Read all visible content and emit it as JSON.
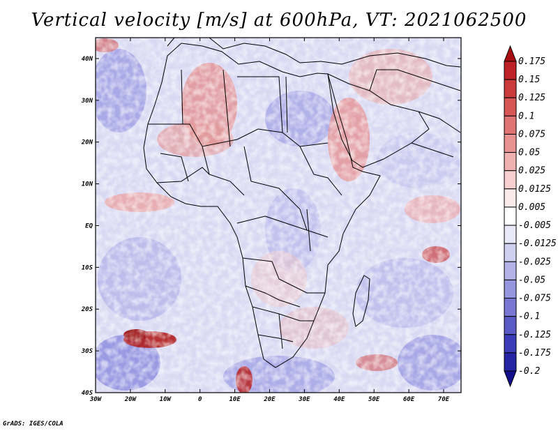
{
  "title": "Vertical velocity [m/s] at 600hPa, VT: 2021062500",
  "credit": "GrADS: IGES/COLA",
  "map": {
    "lat_labels": [
      "40N",
      "30N",
      "20N",
      "10N",
      "EQ",
      "10S",
      "20S",
      "30S",
      "40S"
    ],
    "lon_labels": [
      "30W",
      "20W",
      "10W",
      "0",
      "10E",
      "20E",
      "30E",
      "40E",
      "50E",
      "60E",
      "70E"
    ],
    "lat_range": [
      -40,
      45
    ],
    "lon_range": [
      -30,
      75
    ]
  },
  "colorbar": {
    "labels": [
      "0.175",
      "0.15",
      "0.125",
      "0.1",
      "0.075",
      "0.05",
      "0.025",
      "0.0125",
      "0.005",
      "-0.005",
      "-0.0125",
      "-0.025",
      "-0.05",
      "-0.075",
      "-0.1",
      "-0.125",
      "-0.175",
      "-0.2"
    ],
    "colors": [
      "#a80d12",
      "#be2226",
      "#cc3b3b",
      "#d85656",
      "#e07373",
      "#e99292",
      "#f0b1b1",
      "#f6cfcf",
      "#fbeaea",
      "#ffffff",
      "#e8e8f8",
      "#cfcff0",
      "#b3b3e8",
      "#9696de",
      "#7878d2",
      "#5a5ac6",
      "#3c3cb8",
      "#2424a4",
      "#120e8c"
    ]
  },
  "colors": {
    "positive": "#c42a2a",
    "negative": "#4040c0",
    "background_field": "#dcdcf4"
  }
}
